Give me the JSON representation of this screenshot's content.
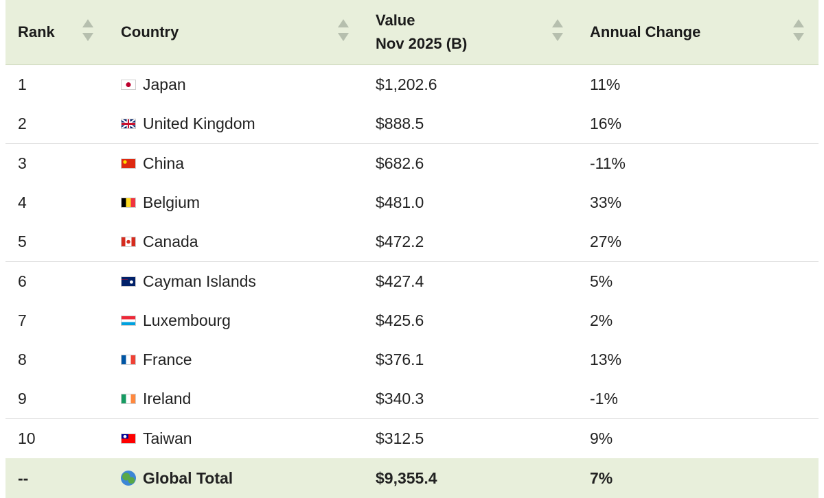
{
  "header": {
    "rank": "Rank",
    "country": "Country",
    "value_line1": "Value",
    "value_line2": "Nov 2025 (B)",
    "annual_change": "Annual Change"
  },
  "rows": [
    {
      "rank": "1",
      "country": "Japan",
      "flag": "japan-flag-icon",
      "value": "$1,202.6",
      "change": "11%"
    },
    {
      "rank": "2",
      "country": "United Kingdom",
      "flag": "uk-flag-icon",
      "value": "$888.5",
      "change": "16%"
    },
    {
      "rank": "3",
      "country": "China",
      "flag": "china-flag-icon",
      "value": "$682.6",
      "change": "-11%"
    },
    {
      "rank": "4",
      "country": "Belgium",
      "flag": "belgium-flag-icon",
      "value": "$481.0",
      "change": "33%"
    },
    {
      "rank": "5",
      "country": "Canada",
      "flag": "canada-flag-icon",
      "value": "$472.2",
      "change": "27%"
    },
    {
      "rank": "6",
      "country": "Cayman Islands",
      "flag": "cayman-islands-flag-icon",
      "value": "$427.4",
      "change": "5%"
    },
    {
      "rank": "7",
      "country": "Luxembourg",
      "flag": "luxembourg-flag-icon",
      "value": "$425.6",
      "change": "2%"
    },
    {
      "rank": "8",
      "country": "France",
      "flag": "france-flag-icon",
      "value": "$376.1",
      "change": "13%"
    },
    {
      "rank": "9",
      "country": "Ireland",
      "flag": "ireland-flag-icon",
      "value": "$340.3",
      "change": "-1%"
    },
    {
      "rank": "10",
      "country": "Taiwan",
      "flag": "taiwan-flag-icon",
      "value": "$312.5",
      "change": "9%"
    }
  ],
  "total": {
    "rank": "--",
    "country": "Global Total",
    "icon": "globe-icon",
    "value": "$9,355.4",
    "change": "7%"
  },
  "colors": {
    "header_bg": "#e8efdb",
    "total_bg": "#e8efdb",
    "sort_arrow": "#b6bfae",
    "row_border": "#d9d9d9"
  }
}
